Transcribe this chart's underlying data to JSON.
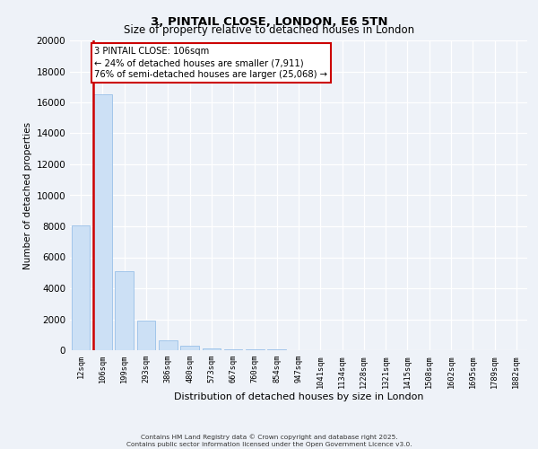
{
  "title1": "3, PINTAIL CLOSE, LONDON, E6 5TN",
  "title2": "Size of property relative to detached houses in London",
  "xlabel": "Distribution of detached houses by size in London",
  "ylabel": "Number of detached properties",
  "categories": [
    "12sqm",
    "106sqm",
    "199sqm",
    "293sqm",
    "386sqm",
    "480sqm",
    "573sqm",
    "667sqm",
    "760sqm",
    "854sqm",
    "947sqm",
    "1041sqm",
    "1134sqm",
    "1228sqm",
    "1321sqm",
    "1415sqm",
    "1508sqm",
    "1602sqm",
    "1695sqm",
    "1789sqm",
    "1882sqm"
  ],
  "values": [
    8050,
    16500,
    5100,
    1900,
    620,
    270,
    140,
    85,
    55,
    35,
    25,
    18,
    13,
    10,
    8,
    7,
    6,
    5,
    4,
    3,
    2
  ],
  "bar_color": "#cce0f5",
  "bar_edge_color": "#99c0e8",
  "red_line_index": 1,
  "annotation_line1": "3 PINTAIL CLOSE: 106sqm",
  "annotation_line2": "← 24% of detached houses are smaller (7,911)",
  "annotation_line3": "76% of semi-detached houses are larger (25,068) →",
  "annotation_box_color": "#ffffff",
  "annotation_box_edge_color": "#cc0000",
  "red_line_color": "#cc0000",
  "ylim": [
    0,
    20000
  ],
  "yticks": [
    0,
    2000,
    4000,
    6000,
    8000,
    10000,
    12000,
    14000,
    16000,
    18000,
    20000
  ],
  "footer1": "Contains HM Land Registry data © Crown copyright and database right 2025.",
  "footer2": "Contains public sector information licensed under the Open Government Licence v3.0.",
  "bg_color": "#eef2f8",
  "plot_bg_color": "#eef2f8",
  "grid_color": "#ffffff",
  "title1_fontsize": 9.5,
  "title2_fontsize": 8.5
}
